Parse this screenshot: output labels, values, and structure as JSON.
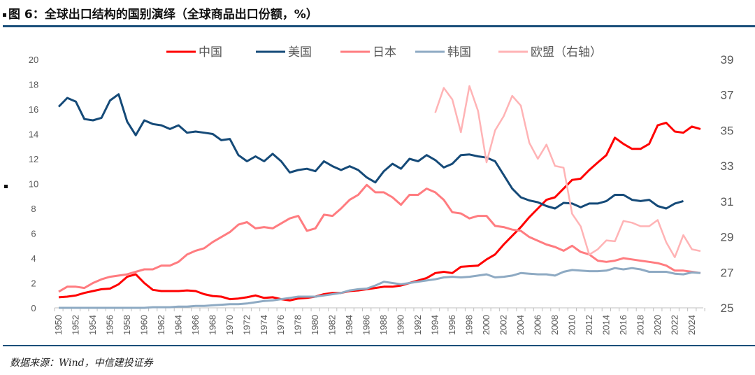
{
  "title": "图 6：全球出口结构的国别演绎（全球商品出口份额，%）",
  "source": "数据来源：Wind，中信建投证券",
  "chart_data": {
    "type": "line",
    "title": "图 6：全球出口结构的国别演绎（全球商品出口份额，%）",
    "xlabel": "",
    "ylabel": "",
    "ylim": [
      0,
      20
    ],
    "y2lim": [
      25,
      39
    ],
    "yticks": [
      0,
      2,
      4,
      6,
      8,
      10,
      12,
      14,
      16,
      18,
      20
    ],
    "y2ticks": [
      25,
      27,
      29,
      31,
      33,
      35,
      37,
      39
    ],
    "legend": "top",
    "grid": false,
    "x_start": 1950,
    "x_end": 2025,
    "series": [
      {
        "name": "中国",
        "color": "#ff0000",
        "axis": "left",
        "start": 1950,
        "values": [
          0.85,
          0.9,
          1.0,
          1.2,
          1.35,
          1.5,
          1.55,
          1.9,
          2.5,
          2.7,
          2.0,
          1.45,
          1.35,
          1.35,
          1.35,
          1.4,
          1.35,
          1.1,
          0.95,
          0.9,
          0.7,
          0.75,
          0.85,
          1.0,
          0.8,
          0.85,
          0.7,
          0.6,
          0.75,
          0.8,
          0.9,
          1.1,
          1.2,
          1.2,
          1.35,
          1.4,
          1.5,
          1.6,
          1.7,
          1.7,
          1.8,
          2.0,
          2.2,
          2.4,
          2.8,
          2.9,
          2.8,
          3.3,
          3.35,
          3.4,
          3.9,
          4.3,
          5.1,
          5.8,
          6.5,
          7.3,
          8.0,
          8.7,
          8.9,
          9.6,
          10.3,
          10.4,
          11.1,
          11.7,
          12.3,
          13.7,
          13.2,
          12.8,
          12.8,
          13.2,
          14.7,
          14.9,
          14.2,
          14.1,
          14.6,
          14.4
        ]
      },
      {
        "name": "美国",
        "color": "#154a78",
        "axis": "left",
        "start": 1950,
        "values": [
          16.2,
          16.9,
          16.6,
          15.2,
          15.1,
          15.3,
          16.7,
          17.2,
          15.0,
          13.9,
          15.1,
          14.8,
          14.7,
          14.4,
          14.7,
          14.1,
          14.2,
          14.1,
          14.0,
          13.5,
          13.6,
          12.3,
          11.8,
          12.2,
          11.8,
          12.4,
          11.8,
          10.9,
          11.1,
          11.2,
          11.0,
          11.8,
          11.4,
          11.1,
          11.4,
          11.1,
          10.5,
          10.1,
          11.0,
          11.6,
          11.2,
          12.0,
          11.8,
          12.3,
          11.9,
          11.3,
          11.6,
          12.3,
          12.35,
          12.2,
          12.1,
          11.8,
          10.7,
          9.6,
          8.9,
          8.65,
          8.5,
          8.2,
          8.0,
          8.45,
          8.4,
          8.1,
          8.4,
          8.4,
          8.6,
          9.1,
          9.1,
          8.7,
          8.6,
          8.7,
          8.2,
          8.0,
          8.4,
          8.6
        ]
      },
      {
        "name": "日本",
        "color": "#ff7c80",
        "axis": "left",
        "start": 1950,
        "values": [
          1.3,
          1.7,
          1.7,
          1.6,
          2.0,
          2.3,
          2.5,
          2.6,
          2.7,
          2.9,
          3.1,
          3.1,
          3.4,
          3.4,
          3.7,
          4.3,
          4.6,
          4.8,
          5.3,
          5.7,
          6.1,
          6.7,
          6.9,
          6.4,
          6.5,
          6.4,
          6.8,
          7.2,
          7.4,
          6.2,
          6.4,
          7.5,
          7.4,
          8.0,
          8.7,
          9.1,
          9.9,
          9.3,
          9.3,
          8.9,
          8.3,
          9.1,
          9.1,
          9.6,
          9.3,
          8.7,
          7.7,
          7.6,
          7.2,
          7.4,
          7.4,
          6.6,
          6.5,
          6.3,
          6.2,
          5.7,
          5.4,
          5.1,
          4.9,
          4.6,
          5.0,
          4.5,
          4.3,
          3.8,
          3.7,
          3.8,
          4.0,
          3.9,
          3.8,
          3.7,
          3.6,
          3.4,
          3.0,
          3.0,
          2.9,
          2.8
        ]
      },
      {
        "name": "韩国",
        "color": "#8eaac3",
        "axis": "left",
        "start": 1950,
        "values": [
          0,
          0,
          0,
          0,
          0,
          0,
          0,
          0,
          0,
          0,
          0,
          0.05,
          0.05,
          0.05,
          0.1,
          0.1,
          0.15,
          0.15,
          0.2,
          0.25,
          0.3,
          0.3,
          0.35,
          0.45,
          0.55,
          0.6,
          0.7,
          0.8,
          0.9,
          0.9,
          0.9,
          1.0,
          1.1,
          1.2,
          1.4,
          1.5,
          1.55,
          1.8,
          2.1,
          2.0,
          1.9,
          2.0,
          2.1,
          2.2,
          2.3,
          2.45,
          2.5,
          2.45,
          2.5,
          2.6,
          2.7,
          2.45,
          2.5,
          2.6,
          2.8,
          2.75,
          2.7,
          2.7,
          2.6,
          2.9,
          3.05,
          3.0,
          2.95,
          2.95,
          3.0,
          3.2,
          3.1,
          3.2,
          3.1,
          2.9,
          2.9,
          2.9,
          2.75,
          2.7,
          2.85,
          2.8
        ]
      },
      {
        "name": "欧盟（右轴）",
        "color": "#ffb3b5",
        "axis": "right",
        "start": 1994,
        "values": [
          36.0,
          37.4,
          36.75,
          34.9,
          37.5,
          36.1,
          33.2,
          35.0,
          35.8,
          36.95,
          36.4,
          34.3,
          33.4,
          34.2,
          33.0,
          32.9,
          30.3,
          29.6,
          28.0,
          28.3,
          28.8,
          28.75,
          29.9,
          29.8,
          29.6,
          29.6,
          29.95,
          28.7,
          27.85,
          29.1,
          28.3,
          28.2
        ]
      }
    ]
  }
}
